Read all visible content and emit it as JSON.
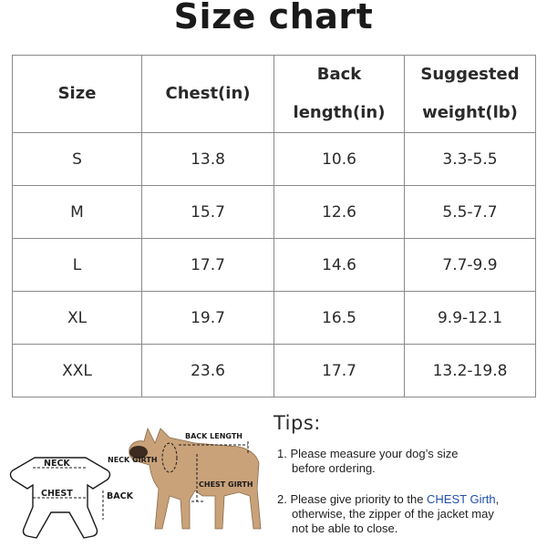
{
  "title": "Size chart",
  "table": {
    "headers": [
      "Size",
      "Chest(in)",
      "Back length(in)",
      "Suggested weight(lb)"
    ],
    "header_lines": {
      "back_1": "Back",
      "back_2": "length(in)",
      "weight_1": "Suggested",
      "weight_2": "weight(lb)"
    },
    "rows": [
      [
        "S",
        "13.8",
        "10.6",
        "3.3-5.5"
      ],
      [
        "M",
        "15.7",
        "12.6",
        "5.5-7.7"
      ],
      [
        "L",
        "17.7",
        "14.6",
        "7.7-9.9"
      ],
      [
        "XL",
        "19.7",
        "16.5",
        "9.9-12.1"
      ],
      [
        "XXL",
        "23.6",
        "17.7",
        "13.2-19.8"
      ]
    ]
  },
  "illustration": {
    "jacket_labels": {
      "neck": "NECK",
      "chest": "CHEST",
      "back": "BACK"
    },
    "dog_labels": {
      "back_length": "BACK LENGTH",
      "neck_girth": "NECK GIRTH",
      "chest_girth": "CHEST GIRTH"
    }
  },
  "tips": {
    "title": "Tips:",
    "tip1_line1": "1. Please measure your dog’s size",
    "tip1_line2": "before ordering.",
    "tip2_prefix": "2. Please give priority to the ",
    "tip2_accent": "CHEST Girth",
    "tip2_suffix": ",",
    "tip2_line2": "otherwise, the zipper of the jacket may",
    "tip2_line3": "not be able to close."
  },
  "colors": {
    "accent": "#1f4fa8",
    "dog_fur": "#c9a27a"
  }
}
